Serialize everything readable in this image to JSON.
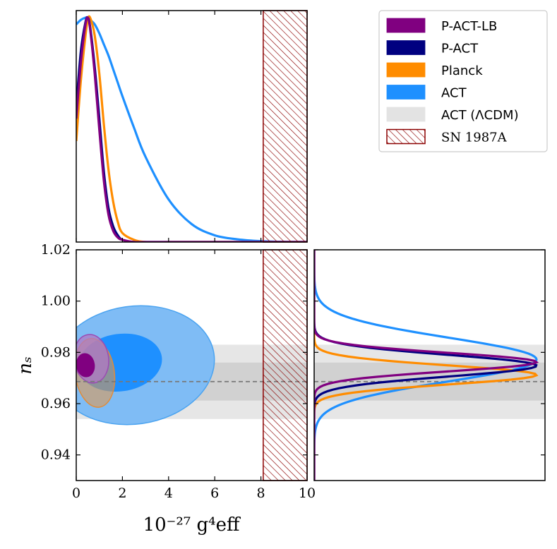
{
  "chart_data": [
    {
      "panel": "top-left",
      "type": "line",
      "x": [
        0,
        0.2,
        0.4,
        0.5,
        0.6,
        0.8,
        1.0,
        1.2,
        1.4,
        1.6,
        1.8,
        2.0,
        2.5,
        3.0,
        4.0,
        5.0,
        6.0,
        7.0,
        8.0,
        9.0,
        10.0
      ],
      "series": [
        {
          "name": "P-ACT-LB",
          "color": "#800080",
          "values": [
            0.55,
            0.8,
            0.97,
            1.0,
            0.95,
            0.75,
            0.5,
            0.27,
            0.12,
            0.05,
            0.02,
            0.01,
            0,
            0,
            0,
            0,
            0,
            0,
            0,
            0,
            0
          ]
        },
        {
          "name": "P-ACT",
          "color": "#000080",
          "values": [
            0.6,
            0.85,
            0.98,
            1.0,
            0.96,
            0.78,
            0.55,
            0.31,
            0.15,
            0.07,
            0.03,
            0.01,
            0,
            0,
            0,
            0,
            0,
            0,
            0,
            0,
            0
          ]
        },
        {
          "name": "Planck",
          "color": "#ff8c00",
          "values": [
            0.45,
            0.72,
            0.92,
            0.99,
            1.0,
            0.92,
            0.75,
            0.52,
            0.32,
            0.18,
            0.09,
            0.04,
            0.01,
            0,
            0,
            0,
            0,
            0,
            0,
            0,
            0
          ]
        },
        {
          "name": "ACT",
          "color": "#1e90ff",
          "values": [
            0.97,
            0.99,
            1.0,
            1.0,
            0.99,
            0.97,
            0.93,
            0.88,
            0.83,
            0.77,
            0.71,
            0.65,
            0.51,
            0.38,
            0.19,
            0.08,
            0.03,
            0.012,
            0.004,
            0.001,
            0
          ]
        }
      ],
      "xlim": [
        0,
        10
      ],
      "exclusion_region": {
        "label": "SN 1987A",
        "x_from": 8.1,
        "x_to": 10
      }
    },
    {
      "panel": "bottom-left",
      "type": "contour",
      "xlabel": "10^{-27} g_eff^4",
      "ylabel": "n_s",
      "xlim": [
        0,
        10
      ],
      "ylim": [
        0.93,
        1.02
      ],
      "xticks": [
        "0",
        "2",
        "4",
        "6",
        "8",
        "10"
      ],
      "yticks": [
        "0.94",
        "0.96",
        "0.98",
        "1.00",
        "1.02"
      ],
      "reference_line": {
        "y": 0.9686,
        "style": "dashed"
      },
      "bands": [
        {
          "name": "ACT (ΛCDM)",
          "level": "95%",
          "y_from": 0.954,
          "y_to": 0.983
        },
        {
          "name": "ACT (ΛCDM)",
          "level": "68%",
          "y_from": 0.9612,
          "y_to": 0.976
        }
      ],
      "contours": [
        {
          "name": "ACT",
          "level": "95%",
          "center": [
            2.5,
            0.975
          ],
          "spread_x": 3.5,
          "spread_y": 0.023
        },
        {
          "name": "ACT",
          "level": "68%",
          "center": [
            1.9,
            0.976
          ],
          "spread_x": 1.8,
          "spread_y": 0.011
        },
        {
          "name": "Planck",
          "level": "95%",
          "center": [
            0.8,
            0.972
          ],
          "spread_x": 0.85,
          "spread_y": 0.0135
        },
        {
          "name": "P-ACT-LB",
          "level": "95%",
          "center": [
            0.65,
            0.9775
          ],
          "spread_x": 0.75,
          "spread_y": 0.0095
        },
        {
          "name": "P-ACT-LB",
          "level": "68%",
          "center": [
            0.4,
            0.975
          ],
          "spread_x": 0.38,
          "spread_y": 0.0045
        }
      ],
      "exclusion_region": {
        "label": "SN 1987A",
        "x_from": 8.1,
        "x_to": 10
      }
    },
    {
      "panel": "bottom-right",
      "type": "line",
      "orientation": "horizontal",
      "ylim": [
        0.93,
        1.02
      ],
      "series": [
        {
          "name": "ACT",
          "color": "#1e90ff",
          "mean": 0.9772,
          "sigma": 0.0085
        },
        {
          "name": "Planck",
          "color": "#ff8c00",
          "mean": 0.9712,
          "sigma": 0.0037
        },
        {
          "name": "P-ACT",
          "color": "#000080",
          "mean": 0.9748,
          "sigma": 0.0042
        },
        {
          "name": "P-ACT-LB",
          "color": "#800080",
          "mean": 0.9762,
          "sigma": 0.0036
        }
      ],
      "bands": [
        {
          "level": "95%",
          "y_from": 0.954,
          "y_to": 0.983
        },
        {
          "level": "68%",
          "y_from": 0.9612,
          "y_to": 0.976
        }
      ],
      "reference_line": {
        "y": 0.9686,
        "style": "dashed"
      }
    }
  ],
  "legend": {
    "placement": "top-right",
    "entries": [
      {
        "label": "P-ACT-LB",
        "color": "#800080",
        "kind": "fill",
        "font": "sans"
      },
      {
        "label": "P-ACT",
        "color": "#000080",
        "kind": "fill",
        "font": "sans"
      },
      {
        "label": "Planck",
        "color": "#ff8c00",
        "kind": "fill",
        "font": "sans"
      },
      {
        "label": "ACT",
        "color": "#1e90ff",
        "kind": "fill",
        "font": "sans"
      },
      {
        "label": "ACT (ΛCDM)",
        "color": "#e3e3e3",
        "kind": "fill",
        "font": "mixed"
      },
      {
        "label": "SN 1987A",
        "color": "#8b0000",
        "kind": "hatch",
        "font": "serif"
      }
    ]
  },
  "text": {
    "xlabel": "10⁻²⁷ g⁴eff",
    "ylabel": "nₛ"
  }
}
